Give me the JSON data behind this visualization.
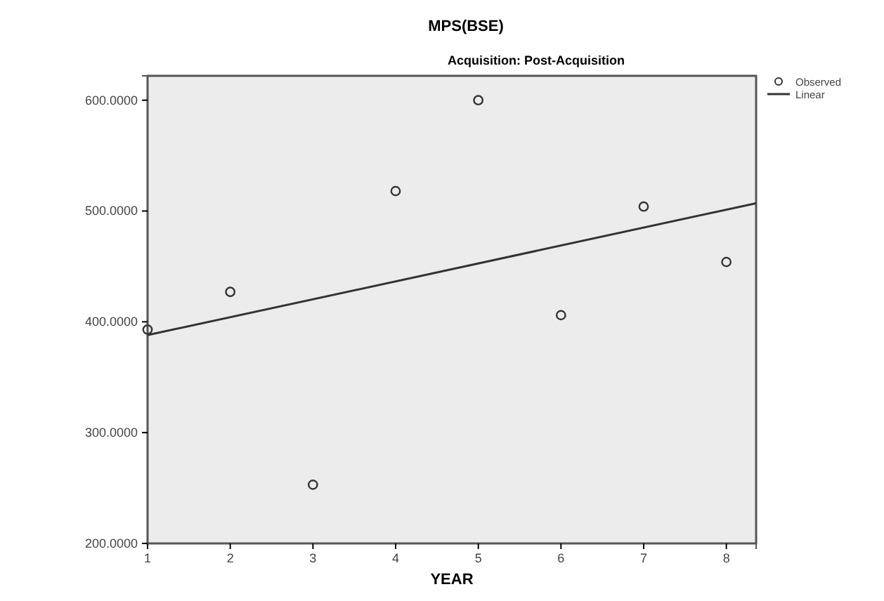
{
  "chart_data": {
    "type": "scatter",
    "title": "MPS(BSE)",
    "subtitle": "Acquisition: Post-Acquisition",
    "xlabel": "YEAR",
    "xlim": [
      1,
      8.36
    ],
    "xticks": [
      1,
      2,
      3,
      4,
      5,
      6,
      7,
      8
    ],
    "ylim": [
      200,
      622
    ],
    "yticks": [
      {
        "value": 200,
        "label": "200.0000"
      },
      {
        "value": 300,
        "label": "300.0000"
      },
      {
        "value": 400,
        "label": "400.0000"
      },
      {
        "value": 500,
        "label": "500.0000"
      },
      {
        "value": 600,
        "label": "600.0000"
      }
    ],
    "legend": "top right",
    "grid": false,
    "series": [
      {
        "name": "Observed",
        "type": "scatter",
        "marker": "circle",
        "color": "#333333",
        "x": [
          1,
          2,
          3,
          4,
          5,
          6,
          7,
          8
        ],
        "values": [
          393,
          427,
          253,
          518,
          600,
          406,
          504,
          454
        ]
      },
      {
        "name": "Linear",
        "type": "line",
        "marker": "none",
        "line_style": "solid",
        "color": "#333333",
        "x": [
          1,
          8.36
        ],
        "values": [
          388,
          507
        ]
      }
    ]
  }
}
